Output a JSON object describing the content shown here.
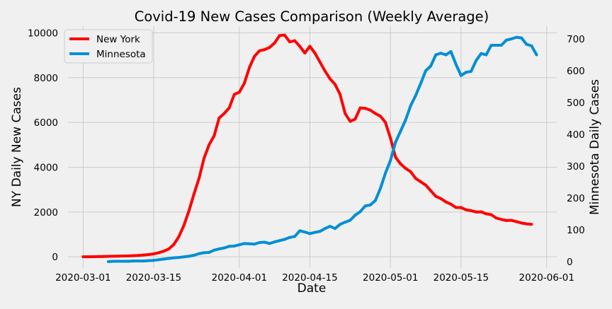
{
  "chart_data": {
    "type": "line",
    "title": "Covid-19 New Cases Comparison (Weekly Average)",
    "xlabel": "Date",
    "ylabel_left": "NY Daily New Cases",
    "ylabel_right": "Minnesota Daily Cases",
    "x_ticks": [
      "2020-03-01",
      "2020-03-15",
      "2020-04-01",
      "2020-04-15",
      "2020-05-01",
      "2020-05-15",
      "2020-06-01"
    ],
    "y_left_ticks": [
      0,
      2000,
      4000,
      6000,
      8000,
      10000
    ],
    "y_right_ticks": [
      0,
      100,
      200,
      300,
      400,
      500,
      600,
      700
    ],
    "xlim": [
      "2020-02-27",
      "2020-06-03"
    ],
    "ylim_left": [
      -500,
      10300
    ],
    "ylim_right": [
      -20,
      740
    ],
    "grid": true,
    "legend_position": "top-left",
    "series": [
      {
        "name": "New York",
        "axis": "left",
        "color": "#ff0000",
        "points": [
          [
            "2020-03-01",
            0
          ],
          [
            "2020-03-02",
            0
          ],
          [
            "2020-03-03",
            5
          ],
          [
            "2020-03-04",
            10
          ],
          [
            "2020-03-05",
            15
          ],
          [
            "2020-03-06",
            20
          ],
          [
            "2020-03-07",
            25
          ],
          [
            "2020-03-08",
            30
          ],
          [
            "2020-03-09",
            35
          ],
          [
            "2020-03-10",
            40
          ],
          [
            "2020-03-11",
            50
          ],
          [
            "2020-03-12",
            60
          ],
          [
            "2020-03-13",
            80
          ],
          [
            "2020-03-14",
            100
          ],
          [
            "2020-03-15",
            130
          ],
          [
            "2020-03-16",
            180
          ],
          [
            "2020-03-17",
            250
          ],
          [
            "2020-03-18",
            350
          ],
          [
            "2020-03-19",
            550
          ],
          [
            "2020-03-20",
            900
          ],
          [
            "2020-03-21",
            1400
          ],
          [
            "2020-03-22",
            2050
          ],
          [
            "2020-03-23",
            2800
          ],
          [
            "2020-03-24",
            3500
          ],
          [
            "2020-03-25",
            4400
          ],
          [
            "2020-03-26",
            5000
          ],
          [
            "2020-03-27",
            5400
          ],
          [
            "2020-03-28",
            6200
          ],
          [
            "2020-03-29",
            6400
          ],
          [
            "2020-03-30",
            6650
          ],
          [
            "2020-03-31",
            7250
          ],
          [
            "2020-04-01",
            7350
          ],
          [
            "2020-04-02",
            7750
          ],
          [
            "2020-04-03",
            8450
          ],
          [
            "2020-04-04",
            8950
          ],
          [
            "2020-04-05",
            9200
          ],
          [
            "2020-04-06",
            9250
          ],
          [
            "2020-04-07",
            9350
          ],
          [
            "2020-04-08",
            9550
          ],
          [
            "2020-04-09",
            9880
          ],
          [
            "2020-04-10",
            9900
          ],
          [
            "2020-04-11",
            9600
          ],
          [
            "2020-04-12",
            9650
          ],
          [
            "2020-04-13",
            9400
          ],
          [
            "2020-04-14",
            9100
          ],
          [
            "2020-04-15",
            9400
          ],
          [
            "2020-04-16",
            9100
          ],
          [
            "2020-04-17",
            8700
          ],
          [
            "2020-04-18",
            8300
          ],
          [
            "2020-04-19",
            7950
          ],
          [
            "2020-04-20",
            7700
          ],
          [
            "2020-04-21",
            7250
          ],
          [
            "2020-04-22",
            6400
          ],
          [
            "2020-04-23",
            6050
          ],
          [
            "2020-04-24",
            6150
          ],
          [
            "2020-04-25",
            6650
          ],
          [
            "2020-04-26",
            6630
          ],
          [
            "2020-04-27",
            6550
          ],
          [
            "2020-04-28",
            6400
          ],
          [
            "2020-04-29",
            6280
          ],
          [
            "2020-04-30",
            6000
          ],
          [
            "2020-05-01",
            5300
          ],
          [
            "2020-05-02",
            4450
          ],
          [
            "2020-05-03",
            4150
          ],
          [
            "2020-05-04",
            3950
          ],
          [
            "2020-05-05",
            3800
          ],
          [
            "2020-05-06",
            3500
          ],
          [
            "2020-05-07",
            3350
          ],
          [
            "2020-05-08",
            3200
          ],
          [
            "2020-05-09",
            2950
          ],
          [
            "2020-05-10",
            2700
          ],
          [
            "2020-05-11",
            2600
          ],
          [
            "2020-05-12",
            2450
          ],
          [
            "2020-05-13",
            2350
          ],
          [
            "2020-05-14",
            2200
          ],
          [
            "2020-05-15",
            2200
          ],
          [
            "2020-05-16",
            2100
          ],
          [
            "2020-05-17",
            2060
          ],
          [
            "2020-05-18",
            2000
          ],
          [
            "2020-05-19",
            2010
          ],
          [
            "2020-05-20",
            1920
          ],
          [
            "2020-05-21",
            1880
          ],
          [
            "2020-05-22",
            1730
          ],
          [
            "2020-05-23",
            1670
          ],
          [
            "2020-05-24",
            1620
          ],
          [
            "2020-05-25",
            1630
          ],
          [
            "2020-05-26",
            1570
          ],
          [
            "2020-05-27",
            1510
          ],
          [
            "2020-05-28",
            1470
          ],
          [
            "2020-05-29",
            1450
          ]
        ]
      },
      {
        "name": "Minnesota",
        "axis": "right",
        "color": "#008fd5",
        "points": [
          [
            "2020-03-06",
            0
          ],
          [
            "2020-03-07",
            1
          ],
          [
            "2020-03-08",
            1
          ],
          [
            "2020-03-09",
            1
          ],
          [
            "2020-03-10",
            1
          ],
          [
            "2020-03-11",
            2
          ],
          [
            "2020-03-12",
            2
          ],
          [
            "2020-03-13",
            2
          ],
          [
            "2020-03-14",
            3
          ],
          [
            "2020-03-15",
            4
          ],
          [
            "2020-03-16",
            6
          ],
          [
            "2020-03-17",
            8
          ],
          [
            "2020-03-18",
            10
          ],
          [
            "2020-03-19",
            12
          ],
          [
            "2020-03-20",
            13
          ],
          [
            "2020-03-21",
            15
          ],
          [
            "2020-03-22",
            17
          ],
          [
            "2020-03-23",
            20
          ],
          [
            "2020-03-24",
            25
          ],
          [
            "2020-03-25",
            28
          ],
          [
            "2020-03-26",
            29
          ],
          [
            "2020-03-27",
            36
          ],
          [
            "2020-03-28",
            40
          ],
          [
            "2020-03-29",
            43
          ],
          [
            "2020-03-30",
            48
          ],
          [
            "2020-03-31",
            49
          ],
          [
            "2020-04-01",
            53
          ],
          [
            "2020-04-02",
            57
          ],
          [
            "2020-04-03",
            56
          ],
          [
            "2020-04-04",
            55
          ],
          [
            "2020-04-05",
            60
          ],
          [
            "2020-04-06",
            61
          ],
          [
            "2020-04-07",
            57
          ],
          [
            "2020-04-08",
            62
          ],
          [
            "2020-04-09",
            66
          ],
          [
            "2020-04-10",
            70
          ],
          [
            "2020-04-11",
            76
          ],
          [
            "2020-04-12",
            79
          ],
          [
            "2020-04-13",
            97
          ],
          [
            "2020-04-14",
            93
          ],
          [
            "2020-04-15",
            88
          ],
          [
            "2020-04-16",
            92
          ],
          [
            "2020-04-17",
            95
          ],
          [
            "2020-04-18",
            104
          ],
          [
            "2020-04-19",
            111
          ],
          [
            "2020-04-20",
            104
          ],
          [
            "2020-04-21",
            117
          ],
          [
            "2020-04-22",
            124
          ],
          [
            "2020-04-23",
            130
          ],
          [
            "2020-04-24",
            146
          ],
          [
            "2020-04-25",
            157
          ],
          [
            "2020-04-26",
            175
          ],
          [
            "2020-04-27",
            178
          ],
          [
            "2020-04-28",
            192
          ],
          [
            "2020-04-29",
            230
          ],
          [
            "2020-04-30",
            278
          ],
          [
            "2020-05-01",
            318
          ],
          [
            "2020-05-02",
            375
          ],
          [
            "2020-05-03",
            410
          ],
          [
            "2020-05-04",
            445
          ],
          [
            "2020-05-05",
            490
          ],
          [
            "2020-05-06",
            522
          ],
          [
            "2020-05-07",
            560
          ],
          [
            "2020-05-08",
            600
          ],
          [
            "2020-05-09",
            615
          ],
          [
            "2020-05-10",
            650
          ],
          [
            "2020-05-11",
            655
          ],
          [
            "2020-05-12",
            650
          ],
          [
            "2020-05-13",
            660
          ],
          [
            "2020-05-14",
            620
          ],
          [
            "2020-05-15",
            585
          ],
          [
            "2020-05-16",
            595
          ],
          [
            "2020-05-17",
            598
          ],
          [
            "2020-05-18",
            632
          ],
          [
            "2020-05-19",
            654
          ],
          [
            "2020-05-20",
            650
          ],
          [
            "2020-05-21",
            680
          ],
          [
            "2020-05-22",
            680
          ],
          [
            "2020-05-23",
            680
          ],
          [
            "2020-05-24",
            696
          ],
          [
            "2020-05-25",
            700
          ],
          [
            "2020-05-26",
            705
          ],
          [
            "2020-05-27",
            703
          ],
          [
            "2020-05-28",
            683
          ],
          [
            "2020-05-29",
            678
          ],
          [
            "2020-05-30",
            650
          ]
        ]
      }
    ]
  }
}
